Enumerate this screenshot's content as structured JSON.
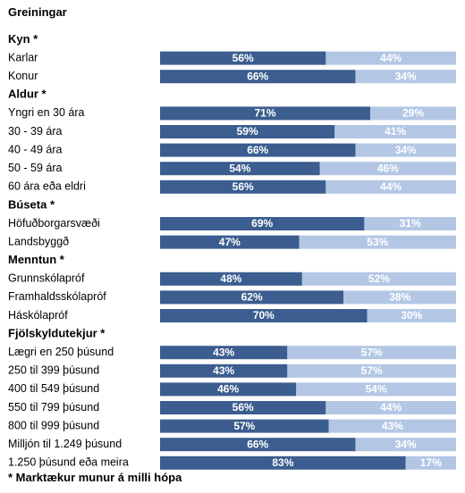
{
  "chart_data": {
    "type": "bar",
    "stacked": true,
    "orientation": "horizontal",
    "percent_scale": 100,
    "title": "Greiningar",
    "footnote": "* Marktækur munur á milli hópa",
    "colors": {
      "first": "#3b5d8f",
      "second": "#b3c7e5"
    },
    "series": [
      {
        "name": "",
        "color": "#3b5d8f"
      },
      {
        "name": "",
        "color": "#b3c7e5"
      }
    ],
    "groups": [
      {
        "heading": "Kyn *",
        "rows": [
          {
            "label": "Karlar",
            "values": [
              56,
              44
            ]
          },
          {
            "label": "Konur",
            "values": [
              66,
              34
            ]
          }
        ]
      },
      {
        "heading": "Aldur *",
        "rows": [
          {
            "label": "Yngri en 30 ára",
            "values": [
              71,
              29
            ]
          },
          {
            "label": "30 - 39 ára",
            "values": [
              59,
              41
            ]
          },
          {
            "label": "40 - 49 ára",
            "values": [
              66,
              34
            ]
          },
          {
            "label": "50 - 59 ára",
            "values": [
              54,
              46
            ]
          },
          {
            "label": "60 ára eða eldri",
            "values": [
              56,
              44
            ]
          }
        ]
      },
      {
        "heading": "Búseta *",
        "rows": [
          {
            "label": "Höfuðborgarsvæði",
            "values": [
              69,
              31
            ]
          },
          {
            "label": "Landsbyggð",
            "values": [
              47,
              53
            ]
          }
        ]
      },
      {
        "heading": "Menntun *",
        "rows": [
          {
            "label": "Grunnskólapróf",
            "values": [
              48,
              52
            ]
          },
          {
            "label": "Framhaldsskólapróf",
            "values": [
              62,
              38
            ]
          },
          {
            "label": "Háskólapróf",
            "values": [
              70,
              30
            ]
          }
        ]
      },
      {
        "heading": "Fjölskyldutekjur *",
        "rows": [
          {
            "label": "Lægri en 250 þúsund",
            "values": [
              43,
              57
            ]
          },
          {
            "label": "250 til 399 þúsund",
            "values": [
              43,
              57
            ]
          },
          {
            "label": "400 til 549 þúsund",
            "values": [
              46,
              54
            ]
          },
          {
            "label": "550 til 799 þúsund",
            "values": [
              56,
              44
            ]
          },
          {
            "label": "800 til 999 þúsund",
            "values": [
              57,
              43
            ]
          },
          {
            "label": "Milljón til 1.249 þúsund",
            "values": [
              66,
              34
            ]
          },
          {
            "label": "1.250 þúsund eða meira",
            "values": [
              83,
              17
            ]
          }
        ]
      }
    ]
  }
}
